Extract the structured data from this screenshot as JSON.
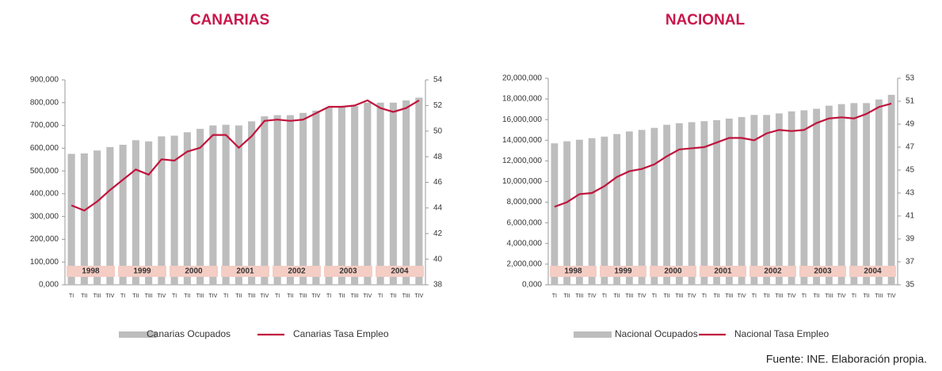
{
  "chart_data": [
    {
      "type": "bar+line",
      "title": "CANARIAS",
      "categories": [
        "TI",
        "TII",
        "TIII",
        "TIV",
        "TI",
        "TII",
        "TIII",
        "TIV",
        "TI",
        "TII",
        "TIII",
        "TIV",
        "TI",
        "TII",
        "TIII",
        "TIV",
        "TI",
        "TII",
        "TIII",
        "TIV",
        "TI",
        "TII",
        "TIII",
        "TIV",
        "TI",
        "TII",
        "TIII",
        "TIV"
      ],
      "year_groups": [
        "1998",
        "1999",
        "2000",
        "2001",
        "2002",
        "2003",
        "2004"
      ],
      "series": [
        {
          "name": "Canarias Ocupados",
          "color": "#bdbdbd",
          "type": "bar",
          "values": [
            575000,
            577000,
            590000,
            605000,
            615000,
            635000,
            630000,
            652000,
            655000,
            670000,
            685000,
            700000,
            703000,
            700000,
            718000,
            740000,
            745000,
            745000,
            755000,
            765000,
            778000,
            780000,
            785000,
            800000,
            800000,
            800000,
            810000,
            822000
          ]
        },
        {
          "name": "Canarias Tasa Empleo",
          "color": "#c0143c",
          "type": "line",
          "axis": "y2",
          "values": [
            44.2,
            43.8,
            44.5,
            45.4,
            46.2,
            47.0,
            46.6,
            47.8,
            47.7,
            48.4,
            48.7,
            49.7,
            49.7,
            48.7,
            49.6,
            50.8,
            50.9,
            50.8,
            50.9,
            51.4,
            51.9,
            51.9,
            52.0,
            52.4,
            51.8,
            51.5,
            51.8,
            52.4
          ]
        }
      ],
      "ylim": [
        0,
        900000
      ],
      "yticks": [
        {
          "value": 0,
          "label": "0,000"
        },
        {
          "value": 100000,
          "label": "100,000"
        },
        {
          "value": 200000,
          "label": "200,000"
        },
        {
          "value": 300000,
          "label": "300,000"
        },
        {
          "value": 400000,
          "label": "400,000"
        },
        {
          "value": 500000,
          "label": "500,000"
        },
        {
          "value": 600000,
          "label": "600,000"
        },
        {
          "value": 700000,
          "label": "700,000"
        },
        {
          "value": 800000,
          "label": "800,000"
        },
        {
          "value": 900000,
          "label": "900,000"
        }
      ],
      "y2lim": [
        38,
        54
      ],
      "y2ticks": [
        38,
        40,
        42,
        44,
        46,
        48,
        50,
        52,
        54
      ]
    },
    {
      "type": "bar+line",
      "title": "NACIONAL",
      "categories": [
        "TI",
        "TII",
        "TIII",
        "TIV",
        "TI",
        "TII",
        "TIII",
        "TIV",
        "TI",
        "TII",
        "TIII",
        "TIV",
        "TI",
        "TII",
        "TIII",
        "TIV",
        "TI",
        "TII",
        "TIII",
        "TIV",
        "TI",
        "TII",
        "TIII",
        "TIV",
        "TI",
        "TII",
        "TIII",
        "TIV"
      ],
      "year_groups": [
        "1998",
        "1999",
        "2000",
        "2001",
        "2002",
        "2003",
        "2004"
      ],
      "series": [
        {
          "name": "Nacional Ocupados",
          "color": "#bdbdbd",
          "type": "bar",
          "values": [
            13700000,
            13900000,
            14050000,
            14200000,
            14350000,
            14600000,
            14850000,
            15000000,
            15200000,
            15500000,
            15650000,
            15750000,
            15850000,
            15950000,
            16100000,
            16250000,
            16450000,
            16450000,
            16600000,
            16800000,
            16900000,
            17050000,
            17350000,
            17500000,
            17600000,
            17600000,
            17950000,
            18400000
          ]
        },
        {
          "name": "Nacional Tasa Empleo",
          "color": "#c0143c",
          "type": "line",
          "axis": "y2",
          "values": [
            41.8,
            42.2,
            42.9,
            43.0,
            43.6,
            44.4,
            44.9,
            45.1,
            45.5,
            46.2,
            46.8,
            46.9,
            47.0,
            47.4,
            47.8,
            47.8,
            47.6,
            48.2,
            48.5,
            48.4,
            48.5,
            49.1,
            49.5,
            49.6,
            49.5,
            49.9,
            50.5,
            50.8
          ]
        }
      ],
      "ylim": [
        0,
        20000000
      ],
      "yticks": [
        {
          "value": 0,
          "label": "0,000"
        },
        {
          "value": 2000000,
          "label": "2,000,000"
        },
        {
          "value": 4000000,
          "label": "4,000,000"
        },
        {
          "value": 6000000,
          "label": "6,000,000"
        },
        {
          "value": 8000000,
          "label": "8,000,000"
        },
        {
          "value": 10000000,
          "label": "10,000,000"
        },
        {
          "value": 12000000,
          "label": "12,000,000"
        },
        {
          "value": 14000000,
          "label": "14,000,000"
        },
        {
          "value": 16000000,
          "label": "16,000,000"
        },
        {
          "value": 18000000,
          "label": "18,000,000"
        },
        {
          "value": 20000000,
          "label": "20,000,000"
        }
      ],
      "y2lim": [
        35,
        53
      ],
      "y2ticks": [
        35,
        37,
        39,
        41,
        43,
        45,
        47,
        49,
        51,
        53
      ]
    }
  ],
  "source": "Fuente: INE. Elaboración propia."
}
